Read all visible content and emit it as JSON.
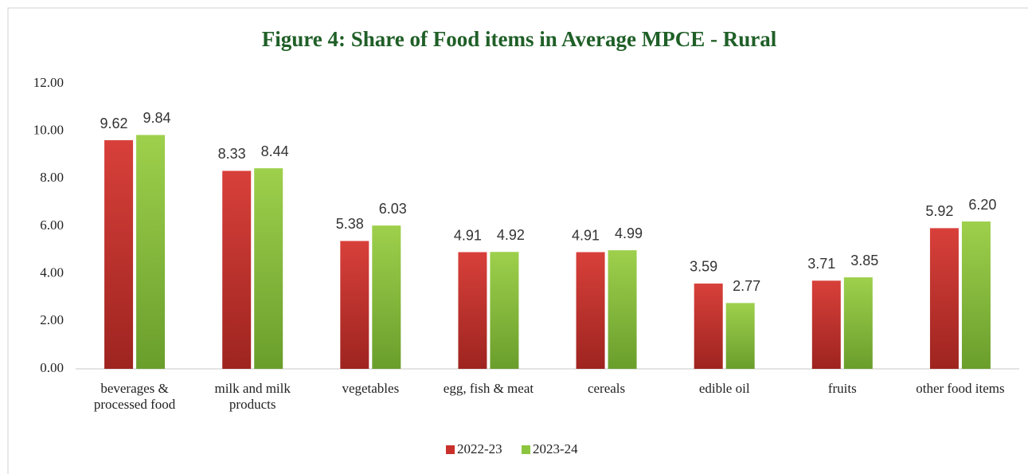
{
  "chart_data": {
    "type": "bar",
    "title": "Figure 4: Share of Food items in Average MPCE - Rural",
    "categories": [
      "beverages & processed food",
      "milk and milk products",
      "vegetables",
      "egg, fish & meat",
      "cereals",
      "edible oil",
      "fruits",
      "other food items"
    ],
    "series": [
      {
        "name": "2022-23",
        "color": "#c9302c",
        "values": [
          9.62,
          8.33,
          5.38,
          4.91,
          4.91,
          3.59,
          3.71,
          5.92
        ]
      },
      {
        "name": "2023-24",
        "color": "#8cc63f",
        "values": [
          9.84,
          8.44,
          6.03,
          4.92,
          4.99,
          2.77,
          3.85,
          6.2
        ],
        "value_labels": [
          "9.84",
          "8.44",
          "6.03",
          "4.92",
          "4.99",
          "2.77",
          "3.85",
          "6.20"
        ]
      }
    ],
    "ylim": [
      0,
      12
    ],
    "yticks": [
      {
        "value": 0,
        "label": "0.00"
      },
      {
        "value": 2,
        "label": "2.00"
      },
      {
        "value": 4,
        "label": "4.00"
      },
      {
        "value": 6,
        "label": "6.00"
      },
      {
        "value": 8,
        "label": "8.00"
      },
      {
        "value": 10,
        "label": "10.00"
      },
      {
        "value": 12,
        "label": "12.00"
      }
    ],
    "legend": "bottom"
  }
}
